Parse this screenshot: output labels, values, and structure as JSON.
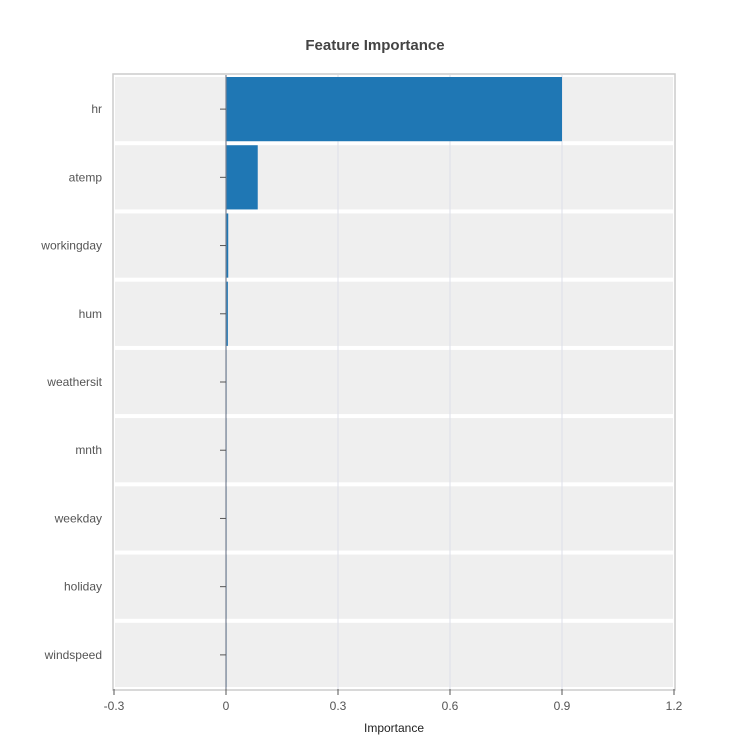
{
  "chart_data": {
    "type": "bar",
    "orientation": "horizontal",
    "title": "Feature Importance",
    "xlabel": "Importance",
    "ylabel": "",
    "categories": [
      "hr",
      "atemp",
      "workingday",
      "hum",
      "weathersit",
      "mnth",
      "weekday",
      "holiday",
      "windspeed"
    ],
    "values": [
      0.9,
      0.085,
      0.006,
      0.005,
      0.001,
      0.001,
      0.0005,
      0.0003,
      0.0002
    ],
    "xlim": [
      -0.3,
      1.2
    ],
    "xticks": [
      -0.3,
      0,
      0.3,
      0.6,
      0.9,
      1.2
    ],
    "xtick_labels": [
      "-0.3",
      "0",
      "0.3",
      "0.6",
      "0.9",
      "1.2"
    ],
    "grid": true,
    "colors": {
      "bar": "#1f77b4",
      "band": "#efefef",
      "grid": "#dcdfe8",
      "frame": "#cccccc",
      "zero_line": "#7a8292"
    }
  }
}
